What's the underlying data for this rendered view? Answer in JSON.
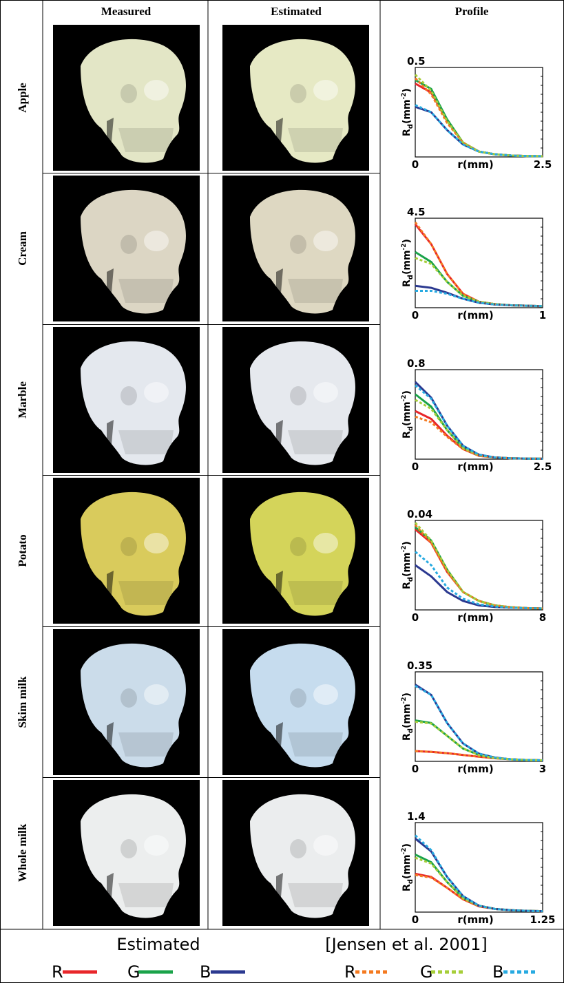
{
  "table": {
    "headers": [
      "Measured",
      "Estimated",
      "Profile"
    ],
    "rows": [
      "Apple",
      "Cream",
      "Marble",
      "Potato",
      "Skim milk",
      "Whole milk"
    ]
  },
  "chart_data": [
    {
      "type": "line",
      "xlabel": "r(mm)",
      "ylabel": [
        "R",
        "d",
        "(mm",
        "-2",
        ")"
      ],
      "x": [
        0,
        0.3125,
        0.625,
        0.9375,
        1.25,
        1.5625,
        1.875,
        2.1875,
        2.5
      ],
      "xlim": [
        0,
        2.5
      ],
      "xticks": [
        0,
        2.5
      ],
      "ylim": [
        0,
        0.5
      ],
      "yticks": [
        0.5
      ],
      "series": [
        {
          "color": "#e8262a",
          "dash": false,
          "values": [
            0.41,
            0.36,
            0.2,
            0.08,
            0.03,
            0.015,
            0.008,
            0.005,
            0.004
          ]
        },
        {
          "color": "#1aa34a",
          "dash": false,
          "values": [
            0.43,
            0.38,
            0.21,
            0.08,
            0.03,
            0.015,
            0.008,
            0.005,
            0.004
          ]
        },
        {
          "color": "#2b3990",
          "dash": false,
          "values": [
            0.28,
            0.25,
            0.15,
            0.07,
            0.03,
            0.015,
            0.008,
            0.005,
            0.004
          ]
        },
        {
          "color": "#f47a20",
          "dash": true,
          "values": [
            0.44,
            0.35,
            0.19,
            0.08,
            0.03,
            0.015,
            0.008,
            0.005,
            0.004
          ]
        },
        {
          "color": "#a6ce39",
          "dash": true,
          "values": [
            0.46,
            0.37,
            0.2,
            0.08,
            0.03,
            0.015,
            0.008,
            0.005,
            0.004
          ]
        },
        {
          "color": "#27aae1",
          "dash": true,
          "values": [
            0.29,
            0.25,
            0.15,
            0.07,
            0.03,
            0.015,
            0.008,
            0.005,
            0.004
          ]
        }
      ]
    },
    {
      "type": "line",
      "xlabel": "r(mm)",
      "ylabel": [
        "R",
        "d",
        "(mm",
        "-2",
        ")"
      ],
      "x": [
        0,
        0.125,
        0.25,
        0.375,
        0.5,
        0.625,
        0.75,
        0.875,
        1
      ],
      "xlim": [
        0,
        1
      ],
      "xticks": [
        0,
        1
      ],
      "ylim": [
        0,
        4.5
      ],
      "yticks": [
        4.5
      ],
      "series": [
        {
          "color": "#e8262a",
          "dash": false,
          "values": [
            4.2,
            3.2,
            1.7,
            0.7,
            0.3,
            0.18,
            0.12,
            0.1,
            0.08
          ]
        },
        {
          "color": "#1aa34a",
          "dash": false,
          "values": [
            2.8,
            2.3,
            1.3,
            0.6,
            0.3,
            0.18,
            0.12,
            0.1,
            0.08
          ]
        },
        {
          "color": "#2b3990",
          "dash": false,
          "values": [
            1.1,
            1.0,
            0.75,
            0.45,
            0.25,
            0.16,
            0.12,
            0.1,
            0.08
          ]
        },
        {
          "color": "#f47a20",
          "dash": true,
          "values": [
            4.3,
            3.2,
            1.7,
            0.7,
            0.3,
            0.18,
            0.12,
            0.1,
            0.08
          ]
        },
        {
          "color": "#a6ce39",
          "dash": true,
          "values": [
            2.5,
            2.2,
            1.3,
            0.6,
            0.3,
            0.18,
            0.12,
            0.1,
            0.08
          ]
        },
        {
          "color": "#27aae1",
          "dash": true,
          "values": [
            0.85,
            0.85,
            0.7,
            0.45,
            0.25,
            0.16,
            0.12,
            0.1,
            0.08
          ]
        }
      ]
    },
    {
      "type": "line",
      "xlabel": "r(mm)",
      "ylabel": [
        "R",
        "d",
        "(mm",
        "-2",
        ")"
      ],
      "x": [
        0,
        0.3125,
        0.625,
        0.9375,
        1.25,
        1.5625,
        1.875,
        2.1875,
        2.5
      ],
      "xlim": [
        0,
        2.5
      ],
      "xticks": [
        0,
        2.5
      ],
      "ylim": [
        0,
        0.8
      ],
      "yticks": [
        0.8
      ],
      "series": [
        {
          "color": "#e8262a",
          "dash": false,
          "values": [
            0.43,
            0.36,
            0.21,
            0.09,
            0.03,
            0.015,
            0.008,
            0.005,
            0.004
          ]
        },
        {
          "color": "#1aa34a",
          "dash": false,
          "values": [
            0.58,
            0.47,
            0.26,
            0.1,
            0.035,
            0.015,
            0.008,
            0.005,
            0.004
          ]
        },
        {
          "color": "#2b3990",
          "dash": false,
          "values": [
            0.69,
            0.55,
            0.3,
            0.12,
            0.04,
            0.015,
            0.008,
            0.005,
            0.004
          ]
        },
        {
          "color": "#f47a20",
          "dash": true,
          "values": [
            0.38,
            0.33,
            0.2,
            0.09,
            0.03,
            0.015,
            0.008,
            0.005,
            0.004
          ]
        },
        {
          "color": "#a6ce39",
          "dash": true,
          "values": [
            0.53,
            0.45,
            0.26,
            0.1,
            0.035,
            0.015,
            0.008,
            0.005,
            0.004
          ]
        },
        {
          "color": "#27aae1",
          "dash": true,
          "values": [
            0.66,
            0.54,
            0.3,
            0.12,
            0.04,
            0.015,
            0.008,
            0.005,
            0.004
          ]
        }
      ]
    },
    {
      "type": "line",
      "xlabel": "r(mm)",
      "ylabel": [
        "R",
        "d",
        "(mm",
        "-2",
        ")"
      ],
      "x": [
        0,
        1,
        2,
        3,
        4,
        5,
        6,
        7,
        8
      ],
      "xlim": [
        0,
        8
      ],
      "xticks": [
        0,
        8
      ],
      "ylim": [
        0,
        0.04
      ],
      "yticks": [
        0.04
      ],
      "series": [
        {
          "color": "#e8262a",
          "dash": false,
          "values": [
            0.036,
            0.03,
            0.017,
            0.008,
            0.004,
            0.002,
            0.0012,
            0.0008,
            0.0006
          ]
        },
        {
          "color": "#1aa34a",
          "dash": false,
          "values": [
            0.037,
            0.031,
            0.018,
            0.008,
            0.004,
            0.002,
            0.0012,
            0.0008,
            0.0006
          ]
        },
        {
          "color": "#2b3990",
          "dash": false,
          "values": [
            0.02,
            0.015,
            0.008,
            0.004,
            0.002,
            0.0013,
            0.001,
            0.0008,
            0.0006
          ]
        },
        {
          "color": "#f47a20",
          "dash": true,
          "values": [
            0.038,
            0.03,
            0.017,
            0.008,
            0.004,
            0.002,
            0.0012,
            0.0008,
            0.0006
          ]
        },
        {
          "color": "#a6ce39",
          "dash": true,
          "values": [
            0.039,
            0.031,
            0.018,
            0.008,
            0.004,
            0.002,
            0.0012,
            0.0008,
            0.0006
          ]
        },
        {
          "color": "#27aae1",
          "dash": true,
          "values": [
            0.026,
            0.02,
            0.01,
            0.005,
            0.0025,
            0.0015,
            0.001,
            0.0008,
            0.0006
          ]
        }
      ]
    },
    {
      "type": "line",
      "xlabel": "r(mm)",
      "ylabel": [
        "R",
        "d",
        "(mm",
        "-2",
        ")"
      ],
      "x": [
        0,
        0.375,
        0.75,
        1.125,
        1.5,
        1.875,
        2.25,
        2.625,
        3
      ],
      "xlim": [
        0,
        3
      ],
      "xticks": [
        0,
        3
      ],
      "ylim": [
        0,
        0.35
      ],
      "yticks": [
        0.35
      ],
      "series": [
        {
          "color": "#e8262a",
          "dash": false,
          "values": [
            0.04,
            0.037,
            0.032,
            0.025,
            0.018,
            0.012,
            0.008,
            0.005,
            0.004
          ]
        },
        {
          "color": "#1aa34a",
          "dash": false,
          "values": [
            0.16,
            0.15,
            0.1,
            0.05,
            0.025,
            0.013,
            0.008,
            0.005,
            0.004
          ]
        },
        {
          "color": "#2b3990",
          "dash": false,
          "values": [
            0.3,
            0.26,
            0.15,
            0.07,
            0.03,
            0.015,
            0.008,
            0.005,
            0.004
          ]
        },
        {
          "color": "#f47a20",
          "dash": true,
          "values": [
            0.04,
            0.037,
            0.032,
            0.025,
            0.018,
            0.012,
            0.008,
            0.005,
            0.004
          ]
        },
        {
          "color": "#a6ce39",
          "dash": true,
          "values": [
            0.155,
            0.148,
            0.1,
            0.05,
            0.025,
            0.013,
            0.008,
            0.005,
            0.004
          ]
        },
        {
          "color": "#27aae1",
          "dash": true,
          "values": [
            0.295,
            0.26,
            0.15,
            0.07,
            0.03,
            0.015,
            0.008,
            0.005,
            0.004
          ]
        }
      ]
    },
    {
      "type": "line",
      "xlabel": "r(mm)",
      "ylabel": [
        "R",
        "d",
        "(mm",
        "-2",
        ")"
      ],
      "x": [
        0,
        0.15625,
        0.3125,
        0.46875,
        0.625,
        0.78125,
        0.9375,
        1.09375,
        1.25
      ],
      "xlim": [
        0,
        1.25
      ],
      "xticks": [
        0,
        1.25
      ],
      "ylim": [
        0,
        1.4
      ],
      "yticks": [
        1.4
      ],
      "series": [
        {
          "color": "#e8262a",
          "dash": false,
          "values": [
            0.6,
            0.55,
            0.38,
            0.2,
            0.09,
            0.05,
            0.03,
            0.02,
            0.015
          ]
        },
        {
          "color": "#1aa34a",
          "dash": false,
          "values": [
            0.9,
            0.78,
            0.47,
            0.22,
            0.1,
            0.05,
            0.03,
            0.02,
            0.015
          ]
        },
        {
          "color": "#2b3990",
          "dash": false,
          "values": [
            1.15,
            0.95,
            0.55,
            0.25,
            0.1,
            0.05,
            0.03,
            0.02,
            0.015
          ]
        },
        {
          "color": "#f47a20",
          "dash": true,
          "values": [
            0.58,
            0.54,
            0.38,
            0.2,
            0.09,
            0.05,
            0.03,
            0.02,
            0.015
          ]
        },
        {
          "color": "#a6ce39",
          "dash": true,
          "values": [
            0.85,
            0.76,
            0.47,
            0.22,
            0.1,
            0.05,
            0.03,
            0.02,
            0.015
          ]
        },
        {
          "color": "#27aae1",
          "dash": true,
          "values": [
            1.2,
            0.97,
            0.55,
            0.25,
            0.1,
            0.05,
            0.03,
            0.02,
            0.015
          ]
        }
      ]
    }
  ],
  "legend": {
    "groups": [
      {
        "title": "Estimated",
        "entries": [
          {
            "label": "R",
            "color": "#e8262a",
            "dash": false
          },
          {
            "label": "G",
            "color": "#1aa34a",
            "dash": false
          },
          {
            "label": "B",
            "color": "#2b3990",
            "dash": false
          }
        ]
      },
      {
        "title": "[Jensen et al. 2001]",
        "entries": [
          {
            "label": "R",
            "color": "#f47a20",
            "dash": true
          },
          {
            "label": "G",
            "color": "#a6ce39",
            "dash": true
          },
          {
            "label": "B",
            "color": "#27aae1",
            "dash": true
          }
        ]
      }
    ]
  }
}
